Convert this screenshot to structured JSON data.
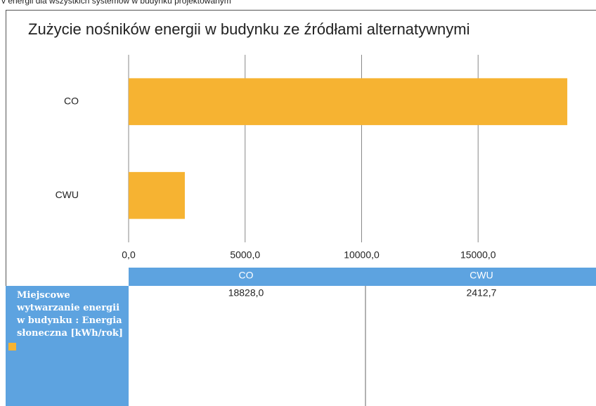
{
  "page_header": "v energii dla wszystkich systemów w budynku projektowanym",
  "chart_data": {
    "type": "bar",
    "orientation": "horizontal",
    "title": "Zużycie nośników energii w budynku ze źródłami alternatywnymi",
    "categories": [
      "CO",
      "CWU"
    ],
    "series": [
      {
        "name": "Miejscowe wytwarzanie energii w budynku : Energia słoneczna [kWh/rok]",
        "color": "#f6b332",
        "values": [
          18828,
          2412.7
        ],
        "value_labels": [
          "18828,0",
          "2412,7"
        ]
      }
    ],
    "xlim": [
      0,
      20000
    ],
    "xticks": [
      {
        "value": 0,
        "label": "0,0"
      },
      {
        "value": 5000,
        "label": "5000,0"
      },
      {
        "value": 10000,
        "label": "10000,0"
      },
      {
        "value": 15000,
        "label": "15000,0"
      }
    ],
    "grid": true
  }
}
